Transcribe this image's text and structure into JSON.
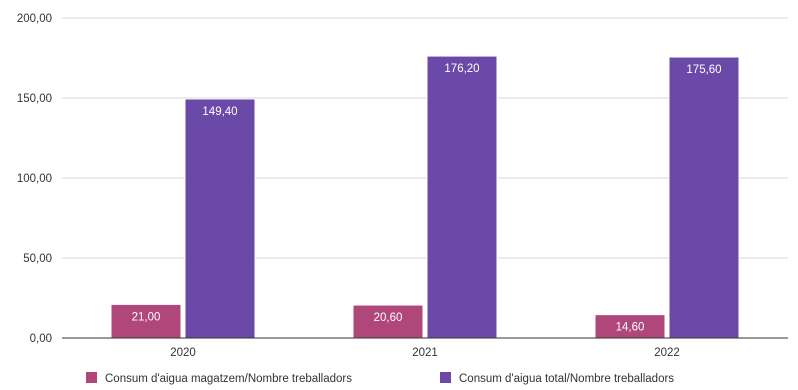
{
  "chart_data": {
    "type": "bar",
    "categories": [
      "2020",
      "2021",
      "2022"
    ],
    "series": [
      {
        "name": "Consum d'aigua magatzem/Nombre treballadors",
        "values": [
          21.0,
          20.6,
          14.6
        ],
        "labels": [
          "21,00",
          "20,60",
          "14,60"
        ],
        "color": "#b0477a"
      },
      {
        "name": "Consum d'aigua total/Nombre treballadors",
        "values": [
          149.4,
          176.2,
          175.6
        ],
        "labels": [
          "149,40",
          "176,20",
          "175,60"
        ],
        "color": "#6b49a8"
      }
    ],
    "yticks": [
      {
        "value": 0,
        "label": "0,00"
      },
      {
        "value": 50,
        "label": "50,00"
      },
      {
        "value": 100,
        "label": "100,00"
      },
      {
        "value": 150,
        "label": "150,00"
      },
      {
        "value": 200,
        "label": "200,00"
      }
    ],
    "ylim": [
      0,
      200
    ],
    "grid": true,
    "legend_position": "bottom",
    "title": "",
    "xlabel": "",
    "ylabel": ""
  }
}
